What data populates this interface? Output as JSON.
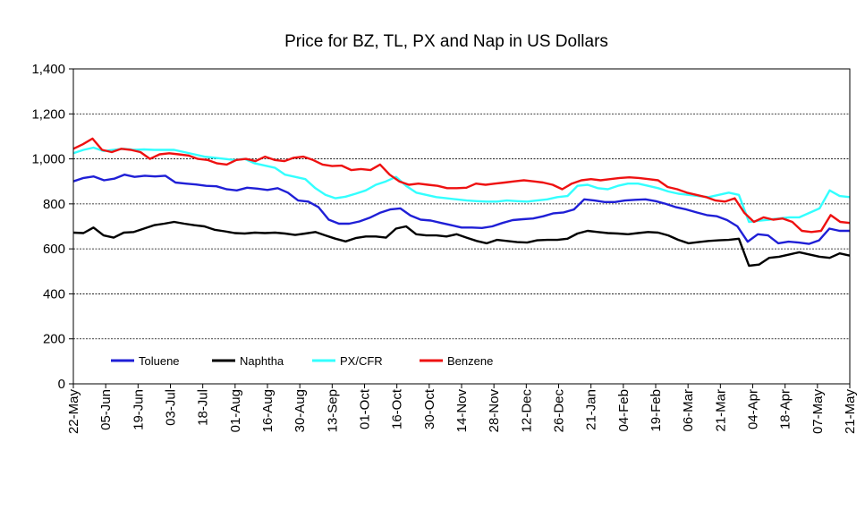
{
  "chart_data": {
    "type": "line",
    "title": "Price for BZ, TL, PX and Nap in US Dollars",
    "xlabel": "",
    "ylabel": "",
    "ylim": [
      0,
      1400
    ],
    "yticks": [
      0,
      200,
      400,
      600,
      800,
      1000,
      1200,
      1400
    ],
    "ytick_labels": [
      "0",
      "200",
      "400",
      "600",
      "800",
      "1,000",
      "1,200",
      "1,400"
    ],
    "x_tick_labels": [
      "22-May",
      "05-Jun",
      "19-Jun",
      "03-Jul",
      "18-Jul",
      "01-Aug",
      "16-Aug",
      "30-Aug",
      "13-Sep",
      "01-Oct",
      "16-Oct",
      "30-Oct",
      "14-Nov",
      "28-Nov",
      "12-Dec",
      "26-Dec",
      "21-Jan",
      "04-Feb",
      "19-Feb",
      "06-Mar",
      "21-Mar",
      "04-Apr",
      "18-Apr",
      "07-May",
      "21-May"
    ],
    "grid": true,
    "legend_position": "bottom-left",
    "series": [
      {
        "name": "Toluene",
        "color": "#1f1fd6",
        "values": [
          900,
          915,
          922,
          905,
          912,
          930,
          920,
          925,
          922,
          925,
          895,
          890,
          886,
          880,
          878,
          865,
          860,
          872,
          868,
          862,
          870,
          850,
          815,
          810,
          785,
          730,
          712,
          712,
          722,
          738,
          760,
          775,
          780,
          748,
          730,
          726,
          715,
          705,
          695,
          695,
          693,
          700,
          715,
          728,
          732,
          735,
          745,
          758,
          762,
          775,
          820,
          815,
          808,
          808,
          815,
          818,
          820,
          812,
          800,
          785,
          775,
          762,
          750,
          745,
          728,
          700,
          632,
          665,
          660,
          625,
          632,
          628,
          622,
          638,
          690,
          680,
          680
        ]
      },
      {
        "name": "Naphtha",
        "color": "#000000",
        "values": [
          672,
          670,
          695,
          660,
          650,
          672,
          675,
          690,
          705,
          712,
          720,
          712,
          705,
          700,
          685,
          678,
          670,
          668,
          672,
          670,
          672,
          668,
          662,
          668,
          675,
          660,
          645,
          633,
          648,
          655,
          655,
          650,
          690,
          700,
          665,
          660,
          660,
          655,
          665,
          650,
          635,
          625,
          640,
          635,
          630,
          628,
          638,
          640,
          640,
          645,
          668,
          680,
          675,
          670,
          668,
          665,
          670,
          675,
          672,
          660,
          640,
          625,
          630,
          635,
          638,
          640,
          645,
          525,
          530,
          560,
          565,
          575,
          585,
          575,
          565,
          560,
          580,
          570
        ]
      },
      {
        "name": "PX/CFR",
        "color": "#33ffff",
        "values": [
          1025,
          1040,
          1050,
          1035,
          1040,
          1045,
          1040,
          1042,
          1040,
          1040,
          1040,
          1030,
          1020,
          1010,
          1005,
          1000,
          995,
          1000,
          980,
          970,
          960,
          930,
          920,
          910,
          870,
          840,
          825,
          832,
          845,
          860,
          885,
          900,
          920,
          880,
          850,
          840,
          830,
          825,
          820,
          815,
          812,
          810,
          810,
          815,
          812,
          810,
          815,
          820,
          830,
          835,
          880,
          885,
          870,
          865,
          880,
          890,
          890,
          880,
          870,
          855,
          845,
          840,
          835,
          830,
          840,
          850,
          840,
          720,
          725,
          730,
          735,
          740,
          740,
          760,
          780,
          860,
          835,
          830
        ]
      },
      {
        "name": "Benzene",
        "color": "#ee1111",
        "values": [
          1045,
          1065,
          1090,
          1040,
          1030,
          1045,
          1040,
          1030,
          1000,
          1020,
          1025,
          1020,
          1015,
          1000,
          995,
          980,
          975,
          995,
          1000,
          990,
          1010,
          995,
          990,
          1005,
          1010,
          995,
          975,
          968,
          970,
          950,
          955,
          950,
          975,
          930,
          900,
          885,
          890,
          885,
          880,
          870,
          870,
          872,
          890,
          885,
          890,
          895,
          900,
          905,
          900,
          895,
          885,
          865,
          890,
          905,
          910,
          905,
          910,
          915,
          918,
          915,
          910,
          905,
          875,
          865,
          850,
          840,
          830,
          815,
          810,
          825,
          760,
          720,
          740,
          730,
          735,
          720,
          680,
          675,
          680,
          750,
          720,
          715
        ]
      }
    ]
  }
}
